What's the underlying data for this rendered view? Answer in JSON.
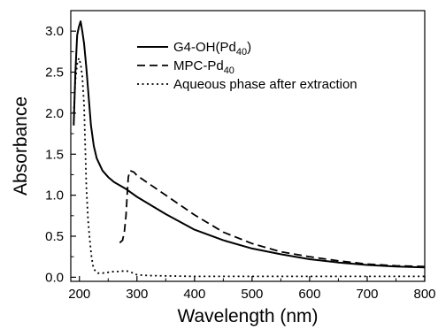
{
  "chart_data": {
    "type": "line",
    "xlabel": "Wavelength (nm)",
    "ylabel": "Absorbance",
    "xlim": [
      185,
      800
    ],
    "ylim": [
      -0.05,
      3.25
    ],
    "xticks": [
      200,
      300,
      400,
      500,
      600,
      700,
      800
    ],
    "xtick_labels": [
      "200",
      "300",
      "400",
      "500",
      "600",
      "700",
      "800"
    ],
    "yticks": [
      0.0,
      0.5,
      1.0,
      1.5,
      2.0,
      2.5,
      3.0
    ],
    "ytick_labels": [
      "0.0",
      "0.5",
      "1.0",
      "1.5",
      "2.0",
      "2.5",
      "3.0"
    ],
    "grid": false,
    "legend_position": "top-right",
    "series": [
      {
        "name": "G4-OH(Pd40)",
        "label_main": "G4-OH(Pd",
        "label_sub": "40",
        "label_end": ")",
        "style": "solid",
        "color": "#000000",
        "x": [
          190,
          193,
          196,
          199,
          202,
          205,
          208,
          212,
          216,
          220,
          225,
          230,
          240,
          250,
          260,
          280,
          300,
          350,
          400,
          450,
          500,
          550,
          600,
          650,
          700,
          750,
          800
        ],
        "y": [
          1.85,
          2.5,
          2.95,
          3.05,
          3.12,
          3.0,
          2.85,
          2.55,
          2.2,
          1.85,
          1.6,
          1.45,
          1.3,
          1.22,
          1.16,
          1.08,
          0.98,
          0.77,
          0.58,
          0.45,
          0.35,
          0.28,
          0.22,
          0.18,
          0.15,
          0.13,
          0.12
        ]
      },
      {
        "name": "MPC-Pd40",
        "label_main": "MPC-Pd",
        "label_sub": "40",
        "label_end": "",
        "style": "dashed",
        "color": "#000000",
        "x": [
          270,
          275,
          278,
          281,
          283,
          285,
          288,
          295,
          300,
          350,
          400,
          450,
          500,
          550,
          600,
          650,
          700,
          750,
          800
        ],
        "y": [
          0.42,
          0.45,
          0.55,
          0.75,
          1.0,
          1.22,
          1.3,
          1.28,
          1.24,
          1.0,
          0.76,
          0.55,
          0.41,
          0.31,
          0.25,
          0.2,
          0.16,
          0.14,
          0.13
        ]
      },
      {
        "name": "Aqueous phase after extraction",
        "label_main": "Aqueous phase after extraction",
        "label_sub": "",
        "label_end": "",
        "style": "dotted",
        "color": "#000000",
        "x": [
          190,
          193,
          196,
          199,
          202,
          205,
          208,
          210,
          212,
          215,
          218,
          221,
          224,
          228,
          232,
          240,
          250,
          260,
          270,
          280,
          290,
          300,
          320,
          400,
          500,
          600,
          700,
          800
        ],
        "y": [
          2.0,
          2.4,
          2.6,
          2.67,
          2.6,
          2.45,
          2.1,
          1.6,
          1.1,
          0.7,
          0.45,
          0.25,
          0.12,
          0.07,
          0.05,
          0.05,
          0.06,
          0.07,
          0.07,
          0.08,
          0.06,
          0.03,
          0.02,
          0.01,
          0.01,
          0.01,
          0.01,
          0.01
        ]
      }
    ]
  }
}
